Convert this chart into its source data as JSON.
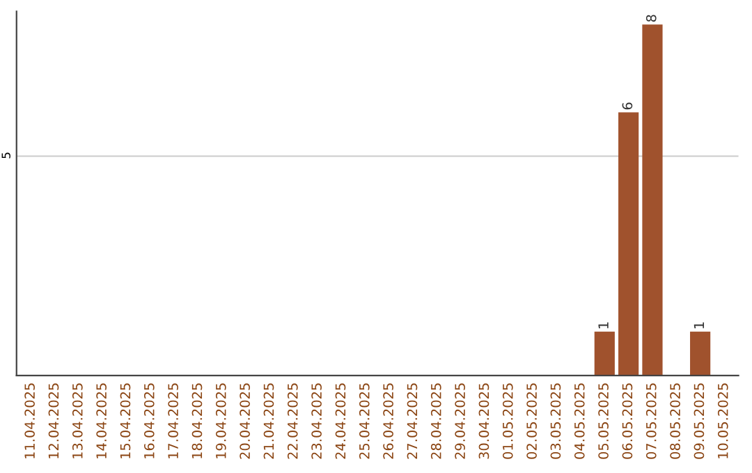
{
  "chart_data": {
    "type": "bar",
    "categories": [
      "11.04.2025",
      "12.04.2025",
      "13.04.2025",
      "14.04.2025",
      "15.04.2025",
      "16.04.2025",
      "17.04.2025",
      "18.04.2025",
      "19.04.2025",
      "20.04.2025",
      "21.04.2025",
      "22.04.2025",
      "23.04.2025",
      "24.04.2025",
      "25.04.2025",
      "26.04.2025",
      "27.04.2025",
      "28.04.2025",
      "29.04.2025",
      "30.04.2025",
      "01.05.2025",
      "02.05.2025",
      "03.05.2025",
      "04.05.2025",
      "05.05.2025",
      "06.05.2025",
      "07.05.2025",
      "08.05.2025",
      "09.05.2025",
      "10.05.2025"
    ],
    "values": [
      null,
      null,
      null,
      null,
      null,
      null,
      null,
      null,
      null,
      null,
      null,
      null,
      null,
      null,
      null,
      null,
      null,
      null,
      null,
      null,
      null,
      null,
      null,
      null,
      1,
      6,
      8,
      null,
      1,
      null
    ],
    "data_labels": true,
    "color": "#a0522d",
    "ylim": [
      0,
      8.3
    ],
    "yticks": [
      5
    ],
    "grid": "y"
  }
}
